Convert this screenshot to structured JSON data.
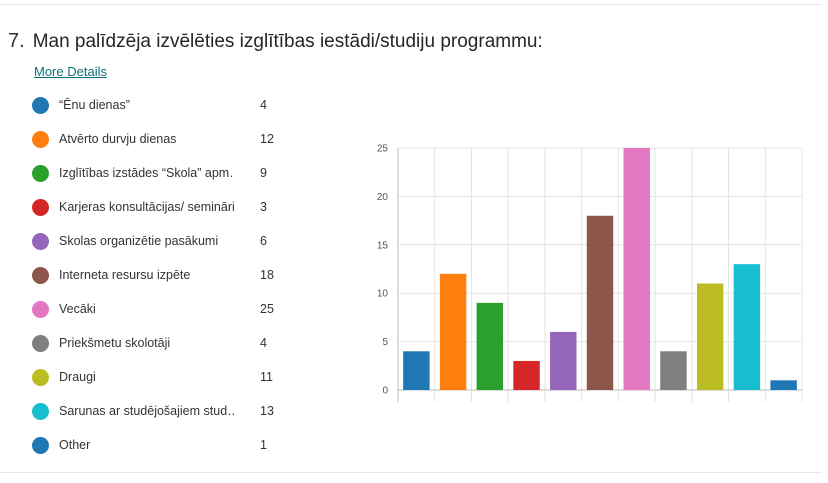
{
  "question": {
    "number": "7.",
    "title": "Man palīdzēja izvēlēties izglītības iestādi/studiju programmu:",
    "more_details": "More Details"
  },
  "legend": [
    {
      "label": "“Ēnu dienas”",
      "count": "4",
      "color": "#1f77b4"
    },
    {
      "label": "Atvērto durvju dienas",
      "count": "12",
      "color": "#ff7f0e"
    },
    {
      "label": "Izglītības izstādes “Skola” apm…",
      "count": "9",
      "color": "#2ca02c"
    },
    {
      "label": "Karjeras konsultācijas/ semināri",
      "count": "3",
      "color": "#d62728"
    },
    {
      "label": "Skolas organizētie pasākumi",
      "count": "6",
      "color": "#9467bd"
    },
    {
      "label": "Interneta resursu izpēte",
      "count": "18",
      "color": "#8c564b"
    },
    {
      "label": "Vecāki",
      "count": "25",
      "color": "#e377c2"
    },
    {
      "label": "Priekšmetu skolotāji",
      "count": "4",
      "color": "#7f7f7f"
    },
    {
      "label": "Draugi",
      "count": "11",
      "color": "#bcbd22"
    },
    {
      "label": "Sarunas ar studējošajiem stud…",
      "count": "13",
      "color": "#17becf"
    },
    {
      "label": "Other",
      "count": "1",
      "color": "#1f77b4"
    }
  ],
  "chart_data": {
    "type": "bar",
    "categories": [
      "“Ēnu dienas”",
      "Atvērto durvju dienas",
      "Izglītības izstādes “Skola” apm…",
      "Karjeras konsultācijas/ semināri",
      "Skolas organizētie pasākumi",
      "Interneta resursu izpēte",
      "Vecāki",
      "Priekšmetu skolotāji",
      "Draugi",
      "Sarunas ar studējošajiem stud…",
      "Other"
    ],
    "values": [
      4,
      12,
      9,
      3,
      6,
      18,
      25,
      4,
      11,
      13,
      1
    ],
    "colors": [
      "#1f77b4",
      "#ff7f0e",
      "#2ca02c",
      "#d62728",
      "#9467bd",
      "#8c564b",
      "#e377c2",
      "#7f7f7f",
      "#bcbd22",
      "#17becf",
      "#1f77b4"
    ],
    "ylim": [
      0,
      25
    ],
    "yticks": [
      "0",
      "5",
      "10",
      "15",
      "20",
      "25"
    ],
    "title": "",
    "xlabel": "",
    "ylabel": "",
    "grid": true
  }
}
